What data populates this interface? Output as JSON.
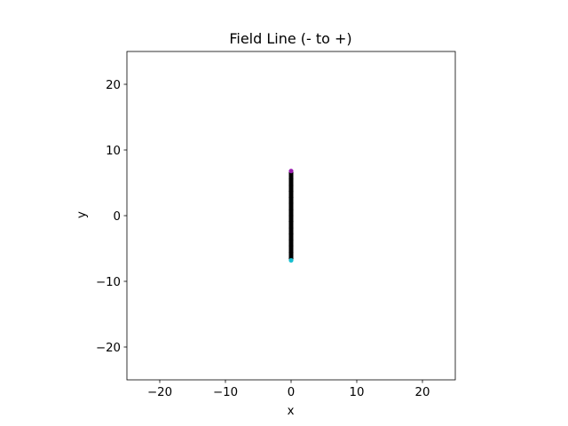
{
  "chart_data": {
    "type": "line",
    "title": "Field Line (- to +)",
    "xlabel": "x",
    "ylabel": "y",
    "xlim": [
      -25,
      25
    ],
    "ylim": [
      -25,
      25
    ],
    "xticks": [
      -20,
      -10,
      0,
      10,
      20
    ],
    "yticks": [
      -20,
      -10,
      0,
      10,
      20
    ],
    "xtick_labels": [
      "−20",
      "−10",
      "0",
      "10",
      "20"
    ],
    "ytick_labels": [
      "−20",
      "−10",
      "0",
      "10",
      "20"
    ],
    "grid": false,
    "series": [
      {
        "x": [
          0,
          0,
          0,
          0,
          0,
          0,
          0,
          0,
          0,
          0,
          0,
          0,
          0,
          0,
          0
        ],
        "y": [
          -6.5,
          -5.6,
          -4.6,
          -3.7,
          -2.8,
          -1.9,
          -0.9,
          0,
          0.9,
          1.9,
          2.8,
          3.7,
          4.6,
          5.6,
          6.5
        ],
        "color": "#000000",
        "marker": "o"
      }
    ],
    "start_point": {
      "x": 0,
      "y": -6.8,
      "color": "#17becf"
    },
    "end_point": {
      "x": 0,
      "y": 6.8,
      "color": "#9b1fb0"
    }
  }
}
